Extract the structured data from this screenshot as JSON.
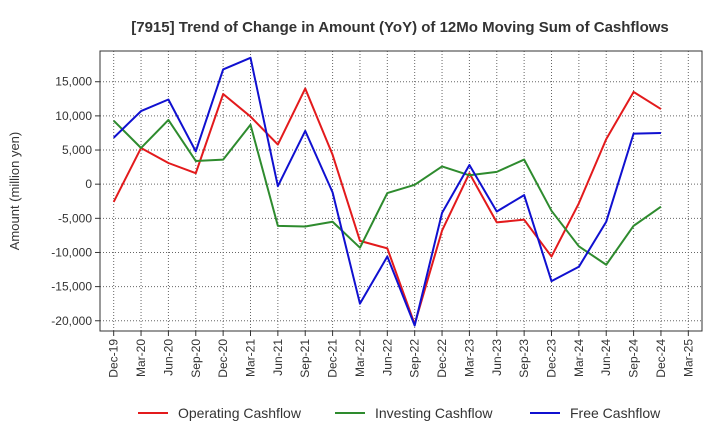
{
  "chart_data": {
    "type": "line",
    "title": "[7915]  Trend of Change in Amount (YoY) of 12Mo Moving Sum of Cashflows",
    "xlabel": "",
    "ylabel": "Amount (million yen)",
    "ylim": [
      -21500,
      19500
    ],
    "yticks": [
      -20000,
      -15000,
      -10000,
      -5000,
      0,
      5000,
      10000,
      15000
    ],
    "ytick_labels": [
      "-20,000",
      "-15,000",
      "-10,000",
      "-5,000",
      "0",
      "5,000",
      "10,000",
      "15,000"
    ],
    "categories": [
      "Dec-19",
      "Mar-20",
      "Jun-20",
      "Sep-20",
      "Dec-20",
      "Mar-21",
      "Jun-21",
      "Sep-21",
      "Dec-21",
      "Mar-22",
      "Jun-22",
      "Sep-22",
      "Dec-22",
      "Mar-23",
      "Jun-23",
      "Sep-23",
      "Dec-23",
      "Mar-24",
      "Jun-24",
      "Sep-24",
      "Dec-24",
      "Mar-25"
    ],
    "grid": true,
    "legend_position": "bottom",
    "series": [
      {
        "name": "Operating Cashflow",
        "color": "#e31a1c",
        "values": [
          -2600,
          5300,
          3100,
          1600,
          13200,
          9900,
          5800,
          14000,
          4300,
          -8300,
          -9400,
          -20500,
          -6800,
          1600,
          -5600,
          -5200,
          -10600,
          -2800,
          6600,
          13500,
          11000,
          null
        ]
      },
      {
        "name": "Investing Cashflow",
        "color": "#2e8b2e",
        "values": [
          9300,
          5300,
          9400,
          3400,
          3600,
          8700,
          -6100,
          -6200,
          -5500,
          -9300,
          -1300,
          -100,
          2600,
          1300,
          1800,
          3600,
          -3900,
          -9100,
          -11800,
          -6100,
          -3300,
          null
        ]
      },
      {
        "name": "Free Cashflow",
        "color": "#1010d0",
        "values": [
          6800,
          10700,
          12400,
          4800,
          16800,
          18500,
          -300,
          7800,
          -1200,
          -17500,
          -10600,
          -20700,
          -4200,
          2800,
          -4000,
          -1600,
          -14200,
          -12100,
          -5500,
          7400,
          7500,
          null
        ]
      }
    ]
  }
}
